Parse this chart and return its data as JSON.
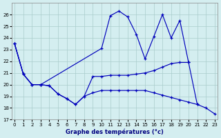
{
  "xlabel": "Graphe des températures (°c)",
  "line_color": "#0000bb",
  "bg_color": "#d4eef0",
  "grid_color": "#aacccc",
  "ylim": [
    17,
    27
  ],
  "xlim": [
    -0.3,
    23.3
  ],
  "yticks": [
    17,
    18,
    19,
    20,
    21,
    22,
    23,
    24,
    25,
    26
  ],
  "xticks": [
    0,
    1,
    2,
    3,
    4,
    5,
    6,
    7,
    8,
    9,
    10,
    11,
    12,
    13,
    14,
    15,
    16,
    17,
    18,
    19,
    20,
    21,
    22,
    23
  ],
  "series1_x": [
    0,
    1,
    2,
    3,
    10,
    11,
    12,
    13,
    14,
    15,
    16,
    17,
    18,
    19,
    20
  ],
  "series1_y": [
    23.5,
    20.9,
    20.0,
    20.0,
    23.1,
    25.9,
    26.3,
    25.8,
    24.3,
    22.2,
    24.1,
    26.0,
    24.0,
    25.5,
    21.9
  ],
  "series2_x": [
    0,
    1,
    2,
    3,
    4,
    5,
    6,
    7,
    8,
    9,
    10,
    11,
    12,
    13,
    14,
    15,
    16,
    17,
    18,
    19,
    20,
    21
  ],
  "series2_y": [
    23.5,
    20.9,
    20.0,
    20.0,
    19.9,
    19.2,
    18.8,
    18.3,
    19.0,
    20.7,
    20.7,
    20.8,
    20.8,
    20.8,
    20.9,
    21.0,
    21.2,
    21.5,
    21.8,
    21.9,
    21.9,
    18.3
  ],
  "series3_x": [
    0,
    1,
    2,
    3,
    4,
    5,
    6,
    7,
    8,
    9,
    10,
    11,
    12,
    13,
    14,
    15,
    16,
    17,
    18,
    19,
    20,
    21,
    22,
    23
  ],
  "series3_y": [
    23.5,
    20.9,
    20.0,
    20.0,
    19.9,
    19.2,
    18.8,
    18.3,
    19.0,
    19.3,
    19.5,
    19.5,
    19.5,
    19.5,
    19.5,
    19.5,
    19.3,
    19.1,
    18.9,
    18.7,
    18.5,
    18.3,
    18.0,
    17.5
  ]
}
